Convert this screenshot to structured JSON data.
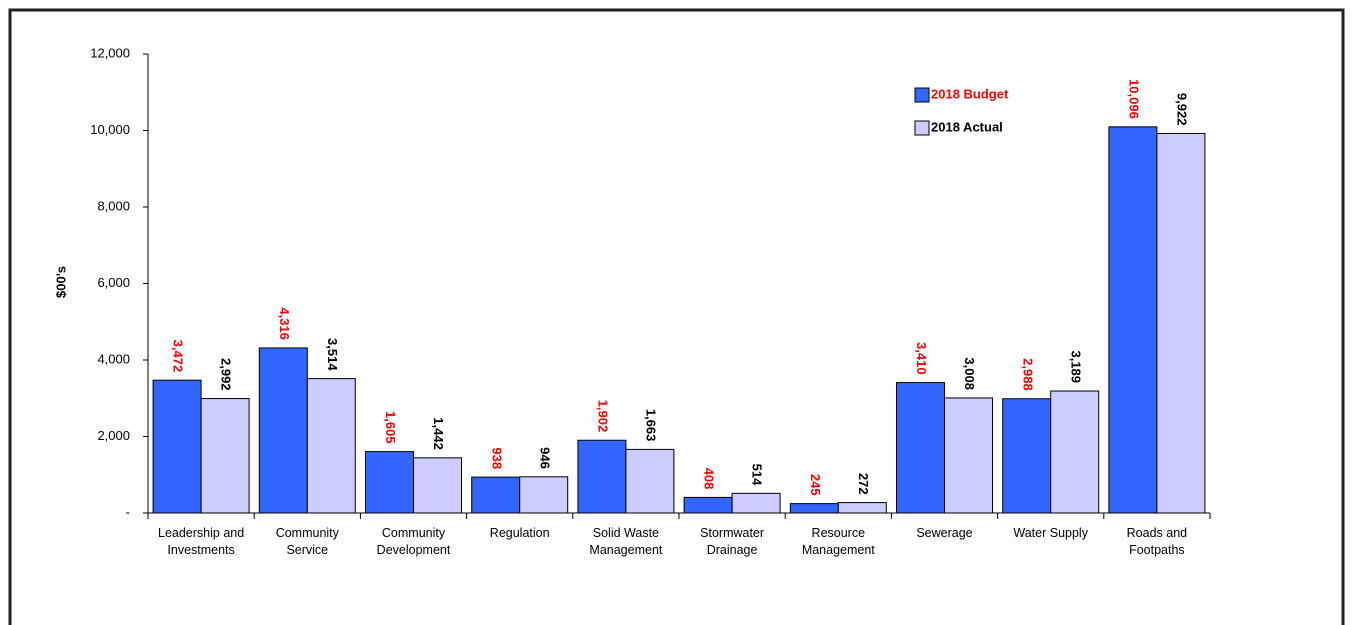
{
  "chart_data": {
    "type": "bar",
    "y_axis_label": "$00's",
    "categories": [
      "Leadership and Investments",
      "Community Service",
      "Community Development",
      "Regulation",
      "Solid Waste Management",
      "Stormwater Drainage",
      "Resource Management",
      "Sewerage",
      "Water Supply",
      "Roads and Footpaths"
    ],
    "series": [
      {
        "name": "2018 Budget",
        "color": "#3366ff",
        "label_color": "#ff0000",
        "values": [
          3472,
          4316,
          1605,
          938,
          1902,
          408,
          245,
          3410,
          2988,
          10096
        ],
        "value_labels": [
          "3,472",
          "4,316",
          "1,605",
          "938",
          "1,902",
          "408",
          "245",
          "3,410",
          "2,988",
          "10,096"
        ]
      },
      {
        "name": "2018 Actual",
        "color": "#ccccff",
        "label_color": "#000000",
        "values": [
          2992,
          3514,
          1442,
          946,
          1663,
          514,
          272,
          3008,
          3189,
          9922
        ],
        "value_labels": [
          "2,992",
          "3,514",
          "1,442",
          "946",
          "1,663",
          "514",
          "272",
          "3,008",
          "3,189",
          "9,922"
        ]
      }
    ],
    "ylim": [
      0,
      12000
    ],
    "yticks": [
      {
        "value": 0,
        "label": "-"
      },
      {
        "value": 2000,
        "label": "2,000"
      },
      {
        "value": 4000,
        "label": "4,000"
      },
      {
        "value": 6000,
        "label": "6,000"
      },
      {
        "value": 8000,
        "label": "8,000"
      },
      {
        "value": 10000,
        "label": "10,000"
      },
      {
        "value": 12000,
        "label": "12,000"
      }
    ],
    "grid": false,
    "legend": "top-right"
  }
}
